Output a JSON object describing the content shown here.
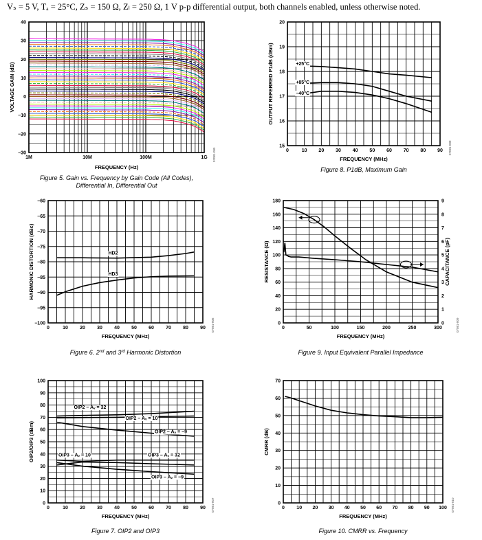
{
  "conditions": "Vₛ = 5 V, Tₐ = 25°C, Zₛ = 150 Ω, Zₗ = 250 Ω, 1 V p-p differential output, both channels enabled, unless otherwise noted.",
  "colors": {
    "grid": "#000000",
    "line": "#000000",
    "gain_curve_colors": [
      "#e6194b",
      "#3cb44b",
      "#ffe119",
      "#4363d8",
      "#f58231",
      "#911eb4",
      "#46f0f0",
      "#f032e6",
      "#bcf60c",
      "#fabebe",
      "#008080",
      "#e6beff",
      "#9a6324",
      "#800000",
      "#808000",
      "#000075",
      "#000000",
      "#808080"
    ]
  },
  "chart_data": [
    {
      "id": "fig5",
      "type": "line",
      "caption": [
        "Figure 5. Gain vs. Frequency by Gain Code (All Codes),",
        "Differential In, Differential Out"
      ],
      "code": "07081-005",
      "xlabel": "FREQUENCY (Hz)",
      "ylabel": "VOLTAGE GAIN (dB)",
      "xscale": "log",
      "xlim": [
        1000000,
        1000000000
      ],
      "ylim": [
        -30,
        40
      ],
      "xticks": [
        1000000,
        10000000,
        100000000,
        1000000000
      ],
      "xtick_labels": [
        "1M",
        "10M",
        "100M",
        "1G"
      ],
      "yticks": [
        -30,
        -20,
        -10,
        0,
        10,
        20,
        30,
        40
      ],
      "gain_codes_db": [
        -12,
        -11,
        -10,
        -9,
        -8,
        -7,
        -6,
        -5,
        -4,
        -3,
        -2,
        -1,
        0,
        1,
        2,
        3,
        4,
        5,
        6,
        7,
        8,
        9,
        10,
        11,
        12,
        13,
        14,
        15,
        16,
        17,
        18,
        19,
        20,
        21,
        22,
        23,
        24,
        25,
        26,
        27,
        28,
        29,
        30,
        31
      ],
      "rolloff": {
        "x": [
          1000000,
          100000000,
          200000000,
          300000000,
          500000000,
          700000000,
          1000000000
        ],
        "delta_db": [
          0,
          -0.2,
          -0.5,
          -1,
          -2.5,
          -4,
          -7
        ]
      }
    },
    {
      "id": "fig8",
      "type": "line",
      "caption": [
        "Figure 8. P1dB, Maximum Gain"
      ],
      "code": "07081-008",
      "xlabel": "FREQUENCY (MHz)",
      "ylabel": "OUTPUT REFERRED P1dB (dBm)",
      "xlim": [
        0,
        90
      ],
      "ylim": [
        15,
        20
      ],
      "xticks": [
        0,
        10,
        20,
        30,
        40,
        50,
        60,
        70,
        80,
        90
      ],
      "yticks": [
        15,
        16,
        17,
        18,
        19,
        20
      ],
      "series": [
        {
          "x": [
            5,
            10,
            20,
            30,
            40,
            50,
            60,
            70,
            85
          ],
          "values": [
            18.25,
            18.22,
            18.2,
            18.15,
            18.1,
            18.0,
            17.9,
            17.85,
            17.75
          ]
        },
        {
          "x": [
            5,
            10,
            20,
            30,
            40,
            50,
            60,
            70,
            85
          ],
          "values": [
            17.5,
            17.52,
            17.55,
            17.55,
            17.5,
            17.4,
            17.2,
            17.0,
            16.8
          ]
        },
        {
          "x": [
            5,
            10,
            20,
            30,
            40,
            50,
            60,
            70,
            85
          ],
          "values": [
            17.05,
            17.1,
            17.2,
            17.2,
            17.15,
            17.05,
            16.9,
            16.7,
            16.35
          ]
        }
      ],
      "annotations": [
        {
          "text": "+25°C",
          "x": 5,
          "y": 18.25
        },
        {
          "text": "+85°C",
          "x": 5,
          "y": 17.5
        },
        {
          "text": "−40°C",
          "x": 5,
          "y": 17.05
        }
      ]
    },
    {
      "id": "fig6",
      "type": "line",
      "caption": [
        "Figure 6. 2",
        "nd",
        " and 3",
        "rd",
        " Harmonic Distortion"
      ],
      "code": "07081-006",
      "xlabel": "FREQUENCY (MHz)",
      "ylabel": "HARMONIC DISTORTION (dBc)",
      "xlim": [
        0,
        90
      ],
      "ylim": [
        -100,
        -60
      ],
      "xticks": [
        0,
        10,
        20,
        30,
        40,
        50,
        60,
        70,
        80,
        90
      ],
      "yticks": [
        -100,
        -95,
        -90,
        -85,
        -80,
        -75,
        -70,
        -65,
        -60
      ],
      "series": [
        {
          "name": "HD2",
          "x": [
            5,
            20,
            40,
            60,
            70,
            80,
            85
          ],
          "values": [
            -78.7,
            -78.7,
            -78.8,
            -78.5,
            -78.0,
            -77.3,
            -76.8
          ]
        },
        {
          "name": "HD3",
          "x": [
            5,
            10,
            20,
            30,
            40,
            50,
            60,
            70,
            85
          ],
          "values": [
            -91.0,
            -89.8,
            -88.0,
            -86.8,
            -86.0,
            -85.3,
            -84.9,
            -84.7,
            -84.6
          ]
        }
      ],
      "annotations": [
        {
          "text": "HD2",
          "x": 35,
          "y": -77.6
        },
        {
          "text": "HD3",
          "x": 35,
          "y": -84.5
        }
      ]
    },
    {
      "id": "fig9",
      "type": "line",
      "caption": [
        "Figure 9. Input Equivalent Parallel Impedance"
      ],
      "code": "07081-009",
      "xlabel": "FREQUENCY (MHz)",
      "ylabel": "RESISTANCE (Ω)",
      "ylabel2": "CAPACITANCE (pF)",
      "xlim": [
        0,
        300
      ],
      "ylim": [
        0,
        180
      ],
      "ylim2": [
        0,
        9
      ],
      "xticks": [
        0,
        50,
        100,
        150,
        200,
        250,
        300
      ],
      "yticks": [
        0,
        20,
        40,
        60,
        80,
        100,
        120,
        140,
        160,
        180
      ],
      "yticks2": [
        0,
        1,
        2,
        3,
        4,
        5,
        6,
        7,
        8,
        9
      ],
      "series": [
        {
          "axis": "left",
          "x": [
            1,
            20,
            40,
            60,
            80,
            100,
            130,
            160,
            200,
            250,
            300
          ],
          "values": [
            170,
            167,
            161,
            152,
            141,
            128,
            110,
            93,
            75,
            60,
            52
          ]
        },
        {
          "axis": "right",
          "x": [
            1,
            3,
            5,
            8,
            10,
            15,
            30,
            60,
            100,
            150,
            200,
            250,
            300
          ],
          "values": [
            5.2,
            5.9,
            5.0,
            4.95,
            4.9,
            4.85,
            4.85,
            4.75,
            4.65,
            4.5,
            4.3,
            4.1,
            3.75
          ]
        }
      ]
    },
    {
      "id": "fig7",
      "type": "line",
      "caption": [
        "Figure 7. OIP2 and OIP3"
      ],
      "code": "07081-007",
      "xlabel": "FREQUENCY (MHz)",
      "ylabel": "OIP2/OIP3 (dBm)",
      "xlim": [
        0,
        90
      ],
      "ylim": [
        0,
        100
      ],
      "xticks": [
        0,
        10,
        20,
        30,
        40,
        50,
        60,
        70,
        80,
        90
      ],
      "yticks": [
        0,
        10,
        20,
        30,
        40,
        50,
        60,
        70,
        80,
        90,
        100
      ],
      "series": [
        {
          "x": [
            5,
            20,
            40,
            60,
            85
          ],
          "values": [
            71,
            71.5,
            72,
            73,
            75
          ]
        },
        {
          "x": [
            5,
            20,
            40,
            60,
            85
          ],
          "values": [
            69.5,
            69.8,
            70,
            70.5,
            71
          ]
        },
        {
          "x": [
            5,
            20,
            40,
            60,
            85
          ],
          "values": [
            66,
            62.5,
            59.5,
            57,
            54.5
          ]
        },
        {
          "x": [
            5,
            20,
            40,
            60,
            85
          ],
          "values": [
            35,
            34,
            35,
            35,
            35
          ]
        },
        {
          "x": [
            5,
            20,
            40,
            60,
            85
          ],
          "values": [
            31,
            33.5,
            33,
            32,
            31
          ]
        },
        {
          "x": [
            5,
            20,
            40,
            60,
            85
          ],
          "values": [
            33,
            30,
            27.5,
            25.5,
            23.5
          ]
        }
      ],
      "annotations": [
        {
          "text": "OIP2 – Aᵥ = 32",
          "x": 15,
          "y": 77
        },
        {
          "text": "OIP2 – Aᵥ = 10",
          "x": 45,
          "y": 68
        },
        {
          "text": "OIP2 – Aᵥ = −9",
          "x": 62,
          "y": 57
        },
        {
          "text": "OIP3 – Aᵥ = 10",
          "x": 6,
          "y": 38
        },
        {
          "text": "OIP3 – Aᵥ = 32",
          "x": 58,
          "y": 38
        },
        {
          "text": "OIP3 – Aᵥ = −9",
          "x": 60,
          "y": 20
        }
      ]
    },
    {
      "id": "fig10",
      "type": "line",
      "caption": [
        "Figure 10. CMRR vs. Frequency"
      ],
      "code": "07081-010",
      "xlabel": "FREQUENCY (MHz)",
      "ylabel": "CMRR (dB)",
      "xlim": [
        0,
        100
      ],
      "ylim": [
        0,
        70
      ],
      "xticks": [
        0,
        10,
        20,
        30,
        40,
        50,
        60,
        70,
        80,
        90,
        100
      ],
      "yticks": [
        0,
        10,
        20,
        30,
        40,
        50,
        60,
        70
      ],
      "series": [
        {
          "x": [
            1,
            5,
            10,
            20,
            30,
            40,
            50,
            60,
            70,
            80,
            90,
            100
          ],
          "values": [
            61,
            60,
            58.5,
            55.5,
            53,
            51.5,
            50.5,
            49.8,
            49.3,
            48.8,
            48.8,
            49
          ]
        }
      ]
    }
  ]
}
